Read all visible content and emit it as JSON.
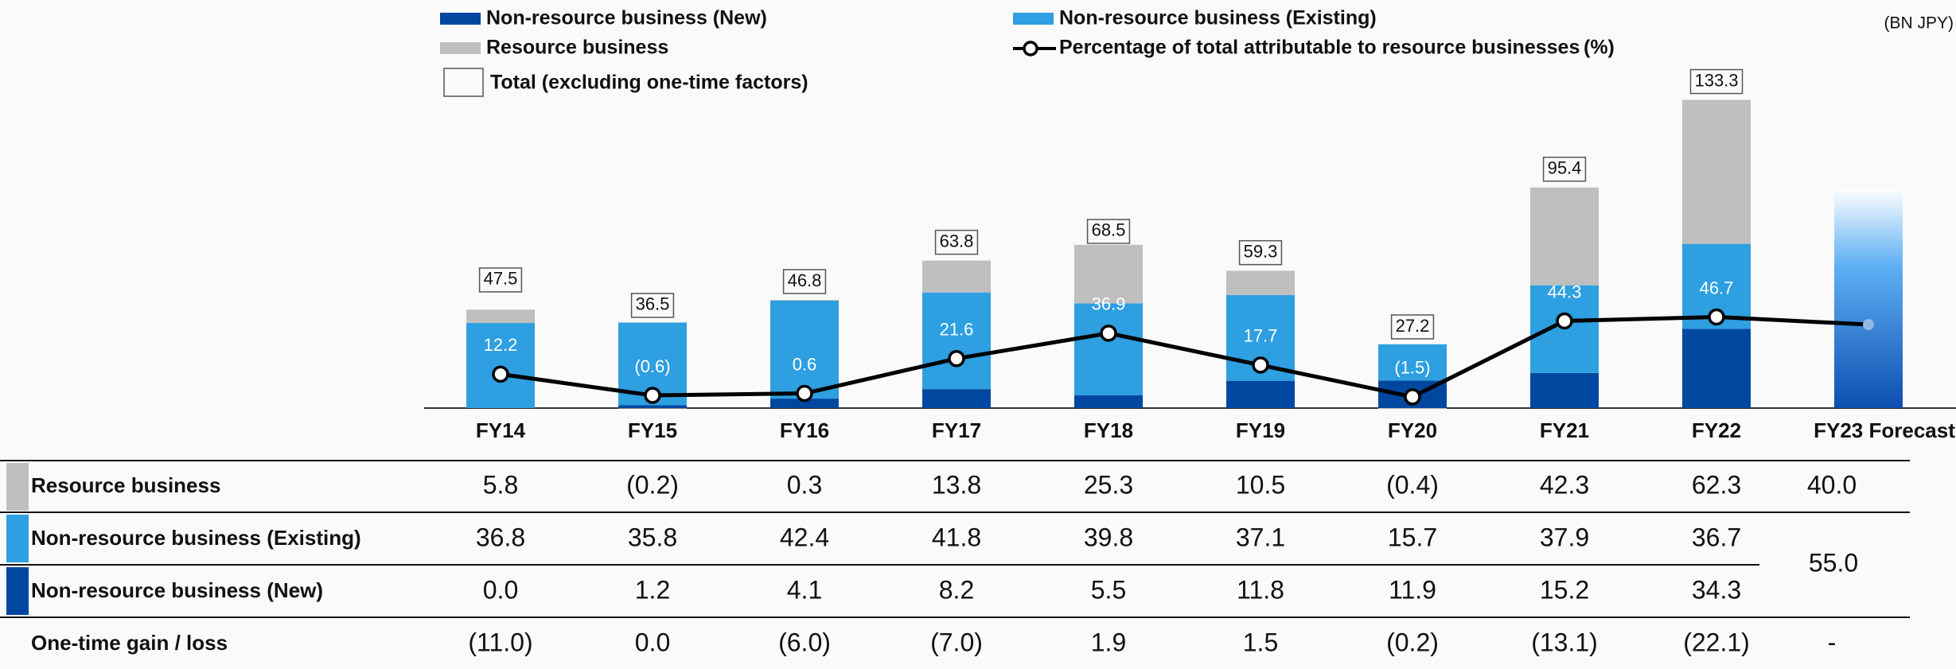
{
  "chart_data": {
    "type": "bar",
    "unit": "(BN JPY)",
    "y2_unit": "(%)",
    "categories": [
      "FY14",
      "FY15",
      "FY16",
      "FY17",
      "FY18",
      "FY19",
      "FY20",
      "FY21",
      "FY22",
      "FY23 Forecast"
    ],
    "series": [
      {
        "name": "Non-resource business (New)",
        "color": "#0047a0",
        "values": [
          0.0,
          1.2,
          4.1,
          8.2,
          5.5,
          11.8,
          11.9,
          15.2,
          34.3,
          null
        ]
      },
      {
        "name": "Non-resource business (Existing)",
        "color": "#2e9fe0",
        "values": [
          36.8,
          35.8,
          42.4,
          41.8,
          39.8,
          37.1,
          15.7,
          37.9,
          36.7,
          55.0
        ]
      },
      {
        "name": "Resource business",
        "color": "#bfbfbf",
        "values": [
          5.8,
          -0.2,
          0.3,
          13.8,
          25.3,
          10.5,
          -0.4,
          42.3,
          62.3,
          40.0
        ]
      }
    ],
    "line": {
      "name": "Percentage of total attributable to resource businesses",
      "type": "line",
      "axis": "y2",
      "color": "#000000",
      "values": [
        12.2,
        -0.6,
        0.6,
        21.6,
        36.9,
        17.7,
        -1.5,
        44.3,
        46.7,
        42.1
      ],
      "value_labels": [
        "12.2",
        "(0.6)",
        "0.6",
        "21.6",
        "36.9",
        "17.7",
        "(1.5)",
        "44.3",
        "46.7",
        null
      ]
    },
    "totals": {
      "name": "Total (excluding one-time factors)",
      "values": [
        47.5,
        36.5,
        46.8,
        63.8,
        68.5,
        59.3,
        27.2,
        95.4,
        133.3,
        null
      ]
    },
    "ylim": [
      0,
      150
    ],
    "y2lim": [
      -8.25,
      200.9
    ]
  },
  "table": {
    "rows": [
      {
        "label": "Resource business",
        "color": "#bfbfbf",
        "values": [
          "5.8",
          "(0.2)",
          "0.3",
          "13.8",
          "25.3",
          "10.5",
          "(0.4)",
          "42.3",
          "62.3",
          "40.0"
        ]
      },
      {
        "label": "Non-resource business (Existing)",
        "color": "#2e9fe0",
        "values": [
          "36.8",
          "35.8",
          "42.4",
          "41.8",
          "39.8",
          "37.1",
          "15.7",
          "37.9",
          "36.7"
        ]
      },
      {
        "label": "Non-resource business (New)",
        "color": "#0047a0",
        "values": [
          "0.0",
          "1.2",
          "4.1",
          "8.2",
          "5.5",
          "11.8",
          "11.9",
          "15.2",
          "34.3"
        ]
      },
      {
        "label": "One-time gain / loss",
        "color": null,
        "values": [
          "(11.0)",
          "0.0",
          "(6.0)",
          "(7.0)",
          "1.9",
          "1.5",
          "(0.2)",
          "(13.1)",
          "(22.1)",
          "-"
        ]
      }
    ],
    "non_resource_forecast": "55.0"
  }
}
